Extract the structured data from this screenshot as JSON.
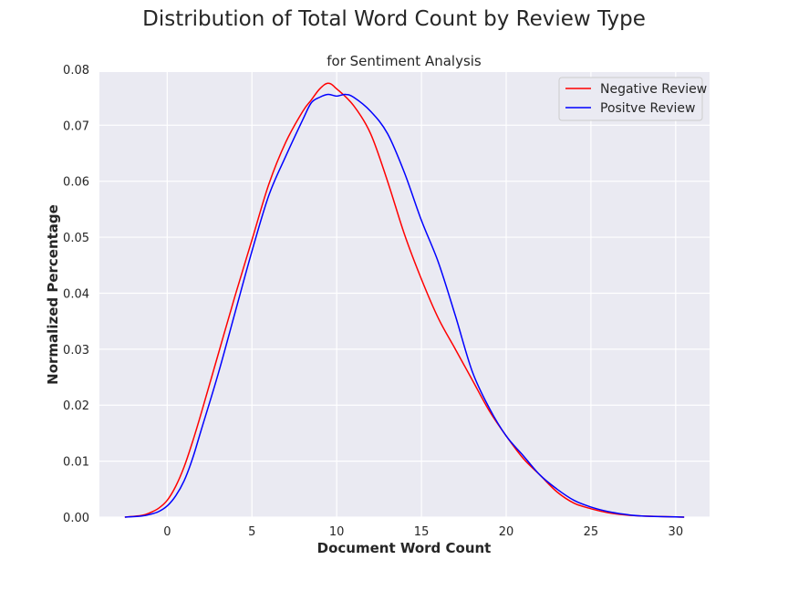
{
  "figure": {
    "suptitle": "Distribution of Total Word Count by Review Type"
  },
  "chart_data": {
    "type": "line",
    "title": "for Sentiment Analysis",
    "xlabel": "Document Word Count",
    "ylabel": "Normalized Percentage",
    "xlim": [
      -4,
      32
    ],
    "ylim": [
      0,
      0.0795
    ],
    "xticks": [
      0,
      5,
      10,
      15,
      20,
      25,
      30
    ],
    "yticks": [
      0.0,
      0.01,
      0.02,
      0.03,
      0.04,
      0.05,
      0.06,
      0.07,
      0.08
    ],
    "ytick_labels": [
      "0.00",
      "0.01",
      "0.02",
      "0.03",
      "0.04",
      "0.05",
      "0.06",
      "0.07",
      "0.08"
    ],
    "grid": true,
    "background": "#eaeaf2",
    "legend_position": "top-right",
    "series": [
      {
        "name": "Negative Review",
        "color": "#ff0000",
        "x": [
          -2.5,
          -1.5,
          -1,
          -0.5,
          0,
          0.5,
          1,
          1.5,
          2,
          3,
          4,
          5,
          6,
          7,
          8,
          8.5,
          9,
          9.5,
          10,
          11,
          12,
          13,
          14,
          15,
          16,
          17,
          18,
          19,
          20,
          21,
          22,
          23,
          24,
          25,
          26,
          27,
          28,
          30.5
        ],
        "y": [
          0.0,
          0.0003,
          0.0008,
          0.0016,
          0.003,
          0.0055,
          0.009,
          0.0135,
          0.0185,
          0.029,
          0.0395,
          0.0495,
          0.0595,
          0.067,
          0.0725,
          0.0745,
          0.0765,
          0.0775,
          0.0765,
          0.0735,
          0.0685,
          0.06,
          0.0505,
          0.0425,
          0.0355,
          0.03,
          0.0245,
          0.019,
          0.0145,
          0.0105,
          0.0075,
          0.0045,
          0.0025,
          0.0015,
          0.0008,
          0.0004,
          0.0002,
          0.0
        ]
      },
      {
        "name": "Positve Review",
        "color": "#0000ff",
        "x": [
          -2.5,
          -1.5,
          -1,
          -0.5,
          0,
          0.5,
          1,
          1.5,
          2,
          3,
          4,
          5,
          6,
          7,
          8,
          8.5,
          9,
          9.5,
          10,
          10.5,
          11,
          12,
          13,
          14,
          15,
          16,
          17,
          18,
          19,
          20,
          21,
          22,
          23,
          24,
          25,
          26,
          27,
          28,
          30.5
        ],
        "y": [
          0.0,
          0.0002,
          0.0005,
          0.001,
          0.002,
          0.0038,
          0.0065,
          0.0105,
          0.0155,
          0.0255,
          0.0365,
          0.0475,
          0.0575,
          0.0645,
          0.071,
          0.074,
          0.075,
          0.0755,
          0.0752,
          0.0755,
          0.075,
          0.0725,
          0.0685,
          0.0615,
          0.053,
          0.0455,
          0.036,
          0.026,
          0.0195,
          0.0145,
          0.011,
          0.0075,
          0.005,
          0.003,
          0.0018,
          0.001,
          0.0005,
          0.0002,
          0.0
        ]
      }
    ]
  }
}
